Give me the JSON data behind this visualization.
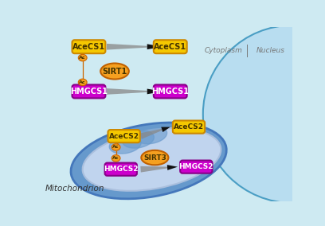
{
  "bg_color": "#ceeaf2",
  "nucleus_color": "#b8ddf0",
  "nucleus_edge_color": "#4a9ec4",
  "mito_outer_color": "#6699cc",
  "mito_outer_edge": "#4477bb",
  "mito_inner_color": "#aabfdd",
  "mito_matrix_color": "#c0d4ee",
  "cytoplasm_label": "Cytoplasm",
  "nucleus_label": "Nucleus",
  "mito_label": "Mitochondrion",
  "acecs_color": "#f5c800",
  "acecs_edge": "#cc8800",
  "hmgcs_color": "#cc00cc",
  "hmgcs_edge": "#880088",
  "sirt_color": "#f5a020",
  "sirt_edge": "#c06000",
  "ac_color": "#f5a020",
  "ac_edge": "#cc6600",
  "text_dark": "#443300",
  "text_white": "#ffffff",
  "text_gray": "#777777"
}
